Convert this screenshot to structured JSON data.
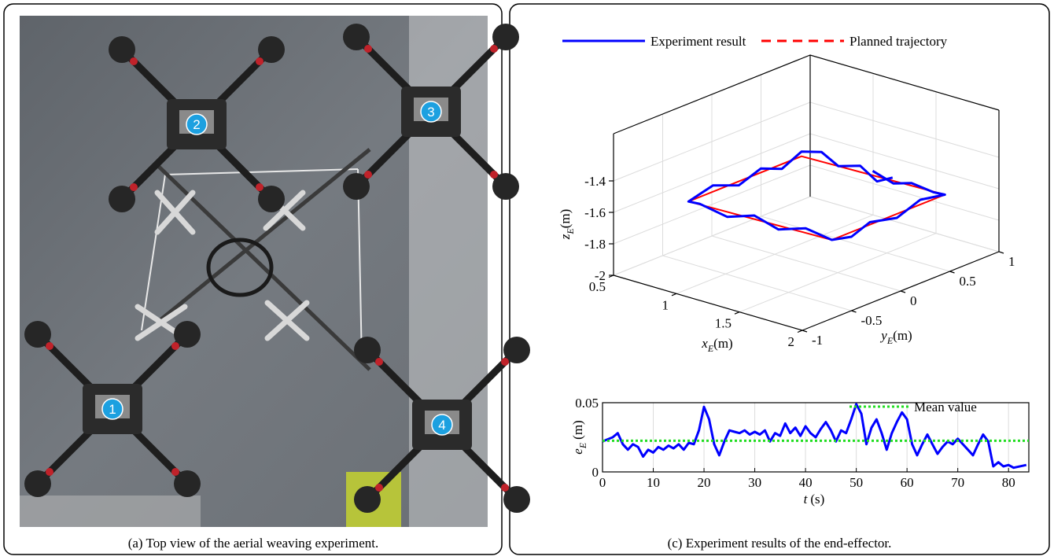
{
  "panel_a": {
    "caption": "(a) Top view of the aerial weaving experiment.",
    "drone_labels": [
      "1",
      "2",
      "3",
      "4"
    ]
  },
  "panel_c": {
    "caption": "(c) Experiment results of the end-effector."
  },
  "chart_data": [
    {
      "type": "line3d",
      "series": [
        {
          "name": "Experiment result",
          "color": "#0000ff",
          "line_style": "solid",
          "x": [
            1.45,
            1.6,
            1.75,
            1.9,
            2.0,
            2.0,
            2.01,
            1.99,
            2.0,
            2.0,
            1.8,
            1.6,
            1.4,
            1.2,
            1.0,
            0.9,
            0.9,
            0.91,
            0.89,
            0.9,
            0.9,
            1.05,
            1.2,
            1.35,
            1.5,
            1.6
          ],
          "y": [
            0.42,
            0.44,
            0.43,
            0.46,
            0.45,
            0.2,
            -0.05,
            -0.3,
            -0.5,
            -0.7,
            -0.71,
            -0.73,
            -0.72,
            -0.74,
            -0.76,
            -0.75,
            -0.5,
            -0.25,
            0.0,
            0.2,
            0.4,
            0.41,
            0.39,
            0.42,
            0.4,
            0.43
          ],
          "z": [
            -1.47,
            -1.52,
            -1.48,
            -1.51,
            -1.5,
            -1.47,
            -1.52,
            -1.49,
            -1.53,
            -1.5,
            -1.47,
            -1.52,
            -1.48,
            -1.53,
            -1.49,
            -1.5,
            -1.46,
            -1.52,
            -1.48,
            -1.53,
            -1.47,
            -1.44,
            -1.49,
            -1.46,
            -1.52,
            -1.48
          ]
        },
        {
          "name": "Planned trajectory",
          "color": "#ff0000",
          "line_style": "dashed",
          "x": [
            0.9,
            0.9,
            2.0,
            2.0,
            0.9
          ],
          "y": [
            -0.75,
            0.4,
            0.45,
            -0.7,
            -0.75
          ],
          "z": [
            -1.5,
            -1.5,
            -1.5,
            -1.5,
            -1.5
          ]
        }
      ],
      "xlim": [
        0.5,
        2
      ],
      "xticks": [
        0.5,
        1,
        1.5,
        2
      ],
      "ylim": [
        -1,
        1
      ],
      "yticks": [
        -1,
        -0.5,
        0,
        0.5,
        1
      ],
      "zlim": [
        -2,
        -1.1
      ],
      "zticks": [
        -2,
        -1.8,
        -1.6,
        -1.4
      ],
      "x_label": {
        "symbol": "x",
        "subscript": "E",
        "unit": "(m)"
      },
      "y_label": {
        "symbol": "y",
        "subscript": "E",
        "unit": "(m)"
      },
      "z_label": {
        "symbol": "z",
        "subscript": "E",
        "unit": "(m)"
      },
      "grid": true
    },
    {
      "type": "line",
      "x": [
        0,
        2,
        3,
        4,
        5,
        6,
        7,
        8,
        9,
        10,
        11,
        12,
        13,
        14,
        15,
        16,
        17,
        18,
        19,
        20,
        21,
        22,
        23,
        24,
        25,
        26,
        27,
        28,
        29,
        30,
        31,
        32,
        33,
        34,
        35,
        36,
        37,
        38,
        39,
        40,
        41,
        42,
        43,
        44,
        45,
        46,
        47,
        48,
        49,
        50,
        51,
        52,
        53,
        54,
        55,
        56,
        57,
        58,
        59,
        60,
        61,
        62,
        63,
        64,
        65,
        66,
        67,
        68,
        69,
        70,
        71,
        72,
        73,
        74,
        75,
        76,
        77,
        78,
        79,
        80,
        81,
        83.5
      ],
      "series": [
        {
          "color": "#0000ff",
          "values": [
            0.022,
            0.025,
            0.028,
            0.02,
            0.016,
            0.02,
            0.018,
            0.011,
            0.016,
            0.014,
            0.018,
            0.016,
            0.019,
            0.017,
            0.02,
            0.016,
            0.021,
            0.02,
            0.03,
            0.047,
            0.038,
            0.02,
            0.012,
            0.022,
            0.03,
            0.029,
            0.028,
            0.03,
            0.027,
            0.029,
            0.027,
            0.03,
            0.022,
            0.028,
            0.026,
            0.035,
            0.028,
            0.032,
            0.026,
            0.033,
            0.028,
            0.025,
            0.031,
            0.036,
            0.03,
            0.022,
            0.03,
            0.028,
            0.038,
            0.049,
            0.042,
            0.02,
            0.032,
            0.038,
            0.028,
            0.016,
            0.028,
            0.036,
            0.043,
            0.038,
            0.02,
            0.012,
            0.02,
            0.027,
            0.02,
            0.013,
            0.018,
            0.022,
            0.02,
            0.024,
            0.02,
            0.016,
            0.012,
            0.02,
            0.027,
            0.022,
            0.004,
            0.007,
            0.004,
            0.005,
            0.003,
            0.005
          ]
        }
      ],
      "mean_value": {
        "value": 0.0225,
        "label": "Mean value",
        "color": "#22dd22"
      },
      "xlim": [
        0,
        84
      ],
      "xticks": [
        0,
        10,
        20,
        30,
        40,
        50,
        60,
        70,
        80
      ],
      "ylim": [
        0,
        0.05
      ],
      "yticks": [
        0,
        0.05
      ],
      "x_label": {
        "symbol": "t",
        "unit": "(s)"
      },
      "y_label": {
        "symbol": "e",
        "subscript": "E",
        "unit": "(m)"
      },
      "grid": true
    }
  ]
}
